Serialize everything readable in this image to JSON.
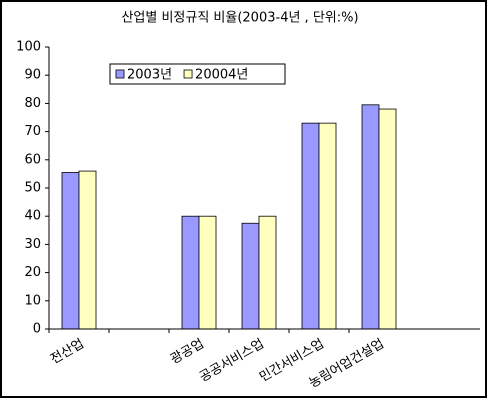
{
  "chart_data": {
    "type": "bar",
    "title": "산업별 비정규직 비율(2003-4년 , 단위:%)",
    "categories": [
      "전산업",
      null,
      "광공업",
      "공공서비스업",
      "민간서비스업",
      "농림어업건설업"
    ],
    "series": [
      {
        "name": "2003년",
        "color": "#9999ff",
        "values": [
          55.5,
          null,
          40,
          37.5,
          73,
          79.5
        ]
      },
      {
        "name": "20004년",
        "color": "#ffffc0",
        "values": [
          56,
          null,
          40,
          40,
          73,
          78
        ]
      }
    ],
    "ylim": [
      0,
      100
    ],
    "yticks": [
      0,
      10,
      20,
      30,
      40,
      50,
      60,
      70,
      80,
      90,
      100
    ],
    "grid": false
  }
}
